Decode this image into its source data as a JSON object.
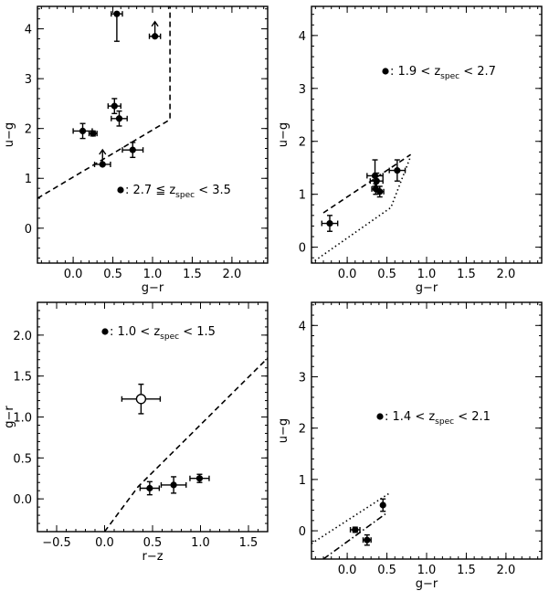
{
  "chart_data": [
    {
      "type": "scatter",
      "panel": "top-left",
      "xlabel": "g−r",
      "ylabel": "u−g",
      "xlim": [
        -0.45,
        2.45
      ],
      "ylim": [
        -0.7,
        4.45
      ],
      "xticks": [
        0.0,
        0.5,
        1.0,
        1.5,
        2.0
      ],
      "xtick_labels": [
        "0.0",
        "0.5",
        "1.0",
        "1.5",
        "2.0"
      ],
      "yticks": [
        0,
        1,
        2,
        3,
        4
      ],
      "ytick_labels": [
        "0",
        "1",
        "2",
        "3",
        "4"
      ],
      "legend": {
        "position": "bottom-center",
        "marker": "filled-circle",
        "prefix": ": 2.7 ≦ z",
        "subscript": "spec",
        "suffix": " < 3.5"
      },
      "points": [
        {
          "x": 0.55,
          "y": 4.3,
          "xerr": 0.07,
          "yerr_lo": 0.55,
          "yerr_hi": 0.0,
          "marker": "filled",
          "limit": ""
        },
        {
          "x": 1.03,
          "y": 3.85,
          "xerr": 0.07,
          "yerr_lo": 0.0,
          "yerr_hi": 0.0,
          "marker": "filled",
          "limit": "lower"
        },
        {
          "x": 0.52,
          "y": 2.45,
          "xerr": 0.08,
          "yerr_lo": 0.15,
          "yerr_hi": 0.15,
          "marker": "filled",
          "limit": ""
        },
        {
          "x": 0.58,
          "y": 2.2,
          "xerr": 0.1,
          "yerr_lo": 0.15,
          "yerr_hi": 0.15,
          "marker": "filled",
          "limit": ""
        },
        {
          "x": 0.12,
          "y": 1.95,
          "xerr": 0.12,
          "yerr_lo": 0.15,
          "yerr_hi": 0.15,
          "marker": "filled",
          "limit": ""
        },
        {
          "x": 0.25,
          "y": 1.9,
          "xerr": 0.05,
          "yerr_lo": 0.05,
          "yerr_hi": 0.05,
          "marker": "filled",
          "limit": ""
        },
        {
          "x": 0.75,
          "y": 1.57,
          "xerr": 0.13,
          "yerr_lo": 0.15,
          "yerr_hi": 0.15,
          "marker": "filled",
          "limit": ""
        },
        {
          "x": 0.37,
          "y": 1.28,
          "xerr": 0.1,
          "yerr_lo": 0.0,
          "yerr_hi": 0.0,
          "marker": "filled",
          "limit": "lower"
        }
      ],
      "lines": [
        {
          "style": "dashed",
          "points": [
            [
              -0.45,
              0.6
            ],
            [
              1.22,
              2.18
            ],
            [
              1.22,
              4.45
            ]
          ]
        }
      ]
    },
    {
      "type": "scatter",
      "panel": "top-right",
      "xlabel": "g−r",
      "ylabel": "u−g",
      "xlim": [
        -0.45,
        2.45
      ],
      "ylim": [
        -0.3,
        4.55
      ],
      "xticks": [
        0.0,
        0.5,
        1.0,
        1.5,
        2.0
      ],
      "xtick_labels": [
        "0.0",
        "0.5",
        "1.0",
        "1.5",
        "2.0"
      ],
      "yticks": [
        0,
        1,
        2,
        3,
        4
      ],
      "ytick_labels": [
        "0",
        "1",
        "2",
        "3",
        "4"
      ],
      "legend": {
        "position": "top-right",
        "marker": "filled-circle",
        "prefix": ": 1.9 < z",
        "subscript": "spec",
        "suffix": " < 2.7"
      },
      "points": [
        {
          "x": -0.22,
          "y": 0.45,
          "xerr": 0.1,
          "yerr_lo": 0.15,
          "yerr_hi": 0.15,
          "marker": "filled",
          "limit": ""
        },
        {
          "x": 0.35,
          "y": 1.35,
          "xerr": 0.1,
          "yerr_lo": 0.2,
          "yerr_hi": 0.3,
          "marker": "filled",
          "limit": ""
        },
        {
          "x": 0.37,
          "y": 1.25,
          "xerr": 0.08,
          "yerr_lo": 0.15,
          "yerr_hi": 0.15,
          "marker": "filled",
          "limit": ""
        },
        {
          "x": 0.36,
          "y": 1.1,
          "xerr": 0.05,
          "yerr_lo": 0.1,
          "yerr_hi": 0.1,
          "marker": "filled",
          "limit": ""
        },
        {
          "x": 0.41,
          "y": 1.05,
          "xerr": 0.05,
          "yerr_lo": 0.1,
          "yerr_hi": 0.1,
          "marker": "filled",
          "limit": ""
        },
        {
          "x": 0.63,
          "y": 1.45,
          "xerr": 0.1,
          "yerr_lo": 0.2,
          "yerr_hi": 0.2,
          "marker": "filled",
          "limit": ""
        }
      ],
      "lines": [
        {
          "style": "dashed",
          "points": [
            [
              -0.3,
              0.65
            ],
            [
              0.8,
              1.75
            ]
          ]
        },
        {
          "style": "dotted",
          "points": [
            [
              -0.45,
              -0.3
            ],
            [
              0.55,
              0.75
            ],
            [
              0.8,
              1.72
            ]
          ]
        }
      ]
    },
    {
      "type": "scatter",
      "panel": "bottom-left",
      "xlabel": "r−z",
      "ylabel": "g−r",
      "xlim": [
        -0.7,
        1.7
      ],
      "ylim": [
        -0.4,
        2.4
      ],
      "xticks": [
        -0.5,
        0.0,
        0.5,
        1.0,
        1.5
      ],
      "xtick_labels": [
        "−0.5",
        "0.0",
        "0.5",
        "1.0",
        "1.5"
      ],
      "yticks": [
        0.0,
        0.5,
        1.0,
        1.5,
        2.0
      ],
      "ytick_labels": [
        "0.0",
        "0.5",
        "1.0",
        "1.5",
        "2.0"
      ],
      "legend": {
        "position": "top-center",
        "marker": "filled-circle",
        "prefix": ": 1.0 < z",
        "subscript": "spec",
        "suffix": " < 1.5"
      },
      "points": [
        {
          "x": 0.38,
          "y": 1.22,
          "xerr": 0.2,
          "yerr_lo": 0.18,
          "yerr_hi": 0.18,
          "marker": "open",
          "limit": ""
        },
        {
          "x": 0.47,
          "y": 0.13,
          "xerr": 0.1,
          "yerr_lo": 0.08,
          "yerr_hi": 0.08,
          "marker": "filled",
          "limit": ""
        },
        {
          "x": 0.72,
          "y": 0.17,
          "xerr": 0.13,
          "yerr_lo": 0.1,
          "yerr_hi": 0.1,
          "marker": "filled",
          "limit": ""
        },
        {
          "x": 0.99,
          "y": 0.25,
          "xerr": 0.1,
          "yerr_lo": 0.05,
          "yerr_hi": 0.05,
          "marker": "filled",
          "limit": ""
        }
      ],
      "lines": [
        {
          "style": "dashed",
          "points": [
            [
              0.0,
              -0.4
            ],
            [
              0.35,
              0.15
            ],
            [
              1.7,
              1.72
            ]
          ]
        }
      ]
    },
    {
      "type": "scatter",
      "panel": "bottom-right",
      "xlabel": "g−r",
      "ylabel": "u−g",
      "xlim": [
        -0.45,
        2.45
      ],
      "ylim": [
        -0.55,
        4.45
      ],
      "xticks": [
        0.0,
        0.5,
        1.0,
        1.5,
        2.0
      ],
      "xtick_labels": [
        "0.0",
        "0.5",
        "1.0",
        "1.5",
        "2.0"
      ],
      "yticks": [
        0,
        1,
        2,
        3,
        4
      ],
      "ytick_labels": [
        "0",
        "1",
        "2",
        "3",
        "4"
      ],
      "legend": {
        "position": "center-right",
        "marker": "filled-circle",
        "prefix": ": 1.4 < z",
        "subscript": "spec",
        "suffix": " < 2.1"
      },
      "points": [
        {
          "x": 0.45,
          "y": 0.5,
          "xerr": 0.0,
          "yerr_lo": 0.12,
          "yerr_hi": 0.12,
          "marker": "filled",
          "limit": ""
        },
        {
          "x": 0.1,
          "y": 0.02,
          "xerr": 0.06,
          "yerr_lo": 0.05,
          "yerr_hi": 0.05,
          "marker": "filled",
          "limit": ""
        },
        {
          "x": 0.25,
          "y": -0.18,
          "xerr": 0.05,
          "yerr_lo": 0.1,
          "yerr_hi": 0.1,
          "marker": "filled",
          "limit": ""
        }
      ],
      "lines": [
        {
          "style": "dotted",
          "points": [
            [
              -0.45,
              -0.25
            ],
            [
              0.55,
              0.75
            ]
          ]
        },
        {
          "style": "dashdot",
          "points": [
            [
              -0.3,
              -0.55
            ],
            [
              0.5,
              0.35
            ]
          ]
        }
      ]
    }
  ]
}
